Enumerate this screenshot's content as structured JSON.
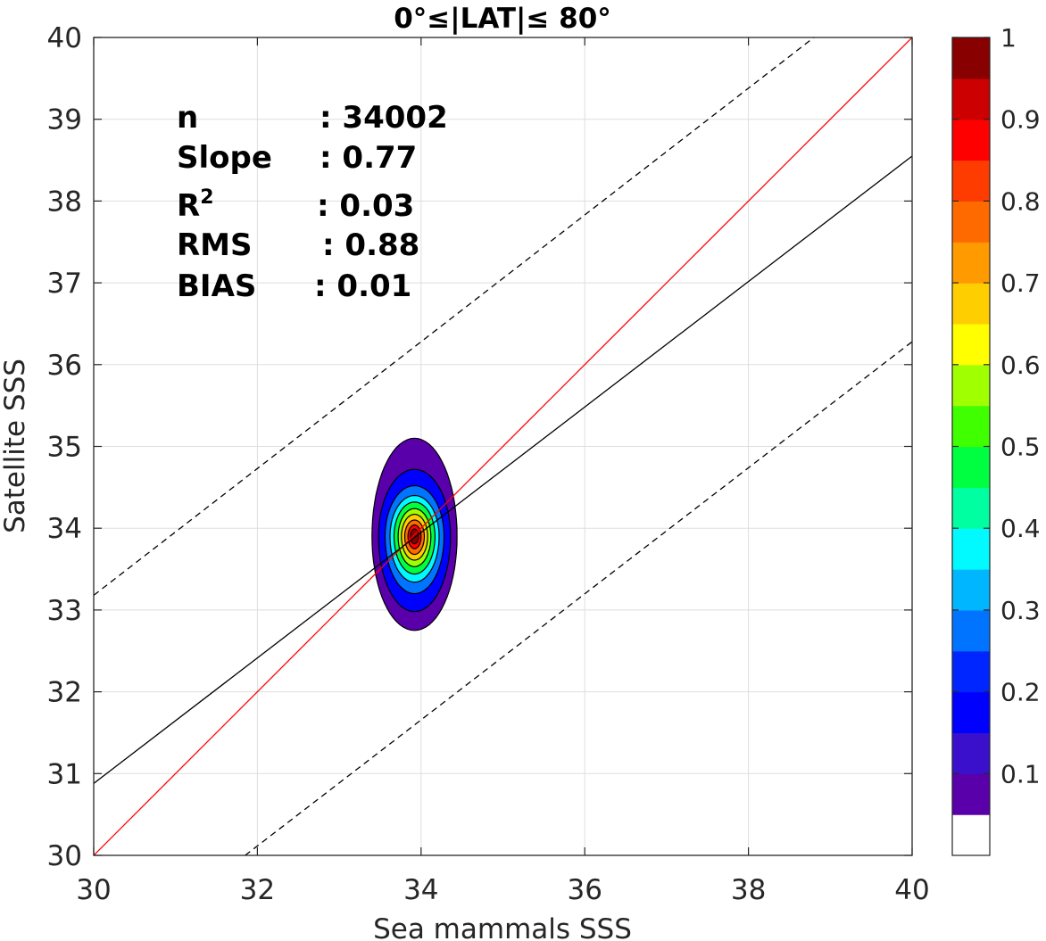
{
  "chart_data": {
    "type": "contour",
    "title": "0°≤|LAT|≤ 80°",
    "xlabel": "Sea mammals SSS",
    "ylabel": "Satellite SSS",
    "xlim": [
      30,
      40
    ],
    "ylim": [
      30,
      40
    ],
    "xticks": [
      "30",
      "32",
      "34",
      "36",
      "38",
      "40"
    ],
    "yticks": [
      "30",
      "31",
      "32",
      "33",
      "34",
      "35",
      "36",
      "37",
      "38",
      "39",
      "40"
    ],
    "grid": true,
    "stats": [
      {
        "name": "n",
        "value": ": 34002"
      },
      {
        "name": "Slope",
        "value": ": 0.77"
      },
      {
        "name": "R",
        "sup": "2",
        "value": ": 0.03"
      },
      {
        "name": "RMS",
        "value": ": 0.88"
      },
      {
        "name": "BIAS",
        "value": ": 0.01"
      }
    ],
    "lines": [
      {
        "role": "one-to-one",
        "color": "#ff0000",
        "style": "solid",
        "points": [
          [
            30,
            30
          ],
          [
            40,
            40
          ]
        ]
      },
      {
        "role": "regression",
        "color": "#000000",
        "style": "solid",
        "points": [
          [
            30,
            30.88
          ],
          [
            40,
            38.55
          ]
        ]
      },
      {
        "role": "upper-bound",
        "color": "#000000",
        "style": "dashed",
        "points": [
          [
            30,
            33.18
          ],
          [
            38.8,
            40
          ]
        ]
      },
      {
        "role": "lower-bound",
        "color": "#000000",
        "style": "dashed",
        "points": [
          [
            31.85,
            30
          ],
          [
            40,
            36.28
          ]
        ]
      }
    ],
    "density": {
      "center": [
        33.92,
        33.9
      ],
      "levels": [
        {
          "level": 0.05,
          "rx": 0.52,
          "ry_up": 1.2,
          "ry_down": 1.15
        },
        {
          "level": 0.15,
          "rx": 0.44,
          "ry_up": 0.82,
          "ry_down": 0.92
        },
        {
          "level": 0.25,
          "rx": 0.36,
          "ry_up": 0.62,
          "ry_down": 0.7
        },
        {
          "level": 0.35,
          "rx": 0.3,
          "ry_up": 0.5,
          "ry_down": 0.56
        },
        {
          "level": 0.45,
          "rx": 0.25,
          "ry_up": 0.42,
          "ry_down": 0.46
        },
        {
          "level": 0.55,
          "rx": 0.2,
          "ry_up": 0.34,
          "ry_down": 0.37
        },
        {
          "level": 0.65,
          "rx": 0.16,
          "ry_up": 0.27,
          "ry_down": 0.29
        },
        {
          "level": 0.75,
          "rx": 0.12,
          "ry_up": 0.2,
          "ry_down": 0.22
        },
        {
          "level": 0.85,
          "rx": 0.08,
          "ry_up": 0.14,
          "ry_down": 0.15
        },
        {
          "level": 0.95,
          "rx": 0.05,
          "ry_up": 0.09,
          "ry_down": 0.09
        }
      ]
    },
    "colorbar": {
      "range": [
        0,
        1
      ],
      "ticks": [
        "0.1",
        "0.2",
        "0.3",
        "0.4",
        "0.5",
        "0.6",
        "0.7",
        "0.8",
        "0.9",
        "1"
      ],
      "tick_values": [
        0.1,
        0.2,
        0.3,
        0.4,
        0.5,
        0.6,
        0.7,
        0.8,
        0.9,
        1.0
      ],
      "colors": [
        "#ffffff",
        "#5a00aa",
        "#3a10cc",
        "#0000ff",
        "#0026ff",
        "#0073ff",
        "#00b7ff",
        "#00faff",
        "#00ffa0",
        "#00ff40",
        "#40ff00",
        "#a0ff00",
        "#ffff00",
        "#ffce00",
        "#ff9a00",
        "#ff6a00",
        "#ff3c00",
        "#ff0000",
        "#cc0000",
        "#880000"
      ]
    }
  }
}
